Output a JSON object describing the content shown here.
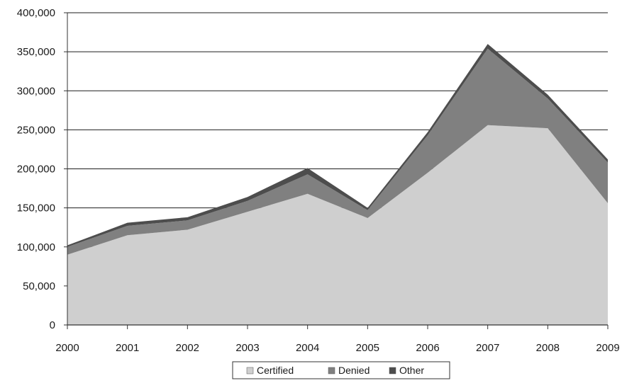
{
  "chart_data": {
    "type": "area",
    "stacked": true,
    "title": "",
    "xlabel": "",
    "ylabel": "",
    "x": [
      "2000",
      "2001",
      "2002",
      "2003",
      "2004",
      "2005",
      "2006",
      "2007",
      "2008",
      "2009"
    ],
    "series": [
      {
        "name": "Certified",
        "color": "#cfcfcf",
        "values": [
          90000,
          115000,
          122000,
          145000,
          168000,
          137000,
          195000,
          256000,
          252000,
          156000
        ]
      },
      {
        "name": "Denied",
        "color": "#808080",
        "values": [
          10000,
          12000,
          12000,
          14000,
          25000,
          10000,
          48000,
          98000,
          38000,
          52000
        ]
      },
      {
        "name": "Other",
        "color": "#4d4d4d",
        "values": [
          2000,
          4000,
          4000,
          5000,
          8000,
          3000,
          4000,
          6000,
          5000,
          4000
        ]
      }
    ],
    "ylim": [
      0,
      400000
    ],
    "yticks": [
      0,
      50000,
      100000,
      150000,
      200000,
      250000,
      300000,
      350000,
      400000
    ],
    "ytick_labels": [
      "0",
      "50,000",
      "100,000",
      "150,000",
      "200,000",
      "250,000",
      "300,000",
      "350,000",
      "400,000"
    ],
    "grid": true,
    "legend_position": "bottom"
  }
}
